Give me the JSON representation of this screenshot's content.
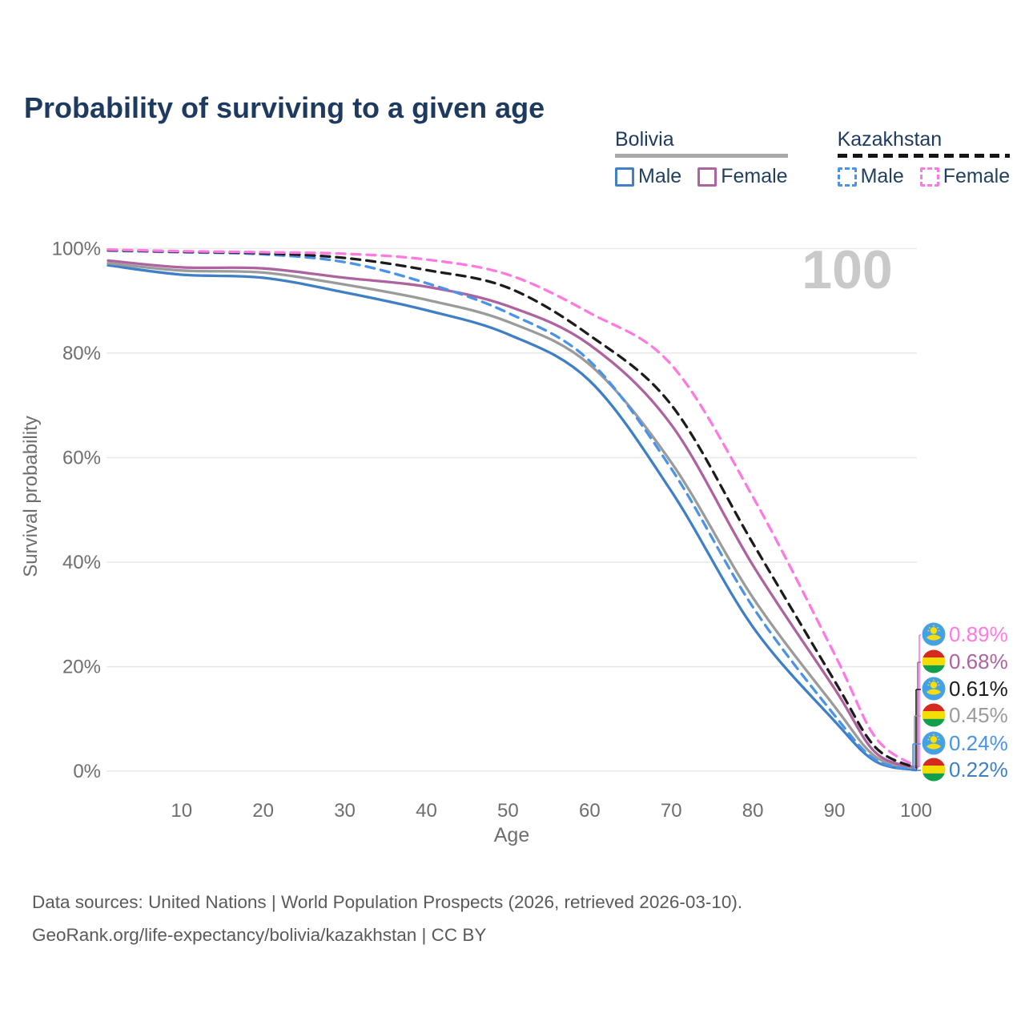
{
  "page": {
    "title": "Probability of surviving to a given age",
    "footer_line1": "Data sources: United Nations | World Population Prospects (2026, retrieved 2026-03-10).",
    "footer_line2": "GeoRank.org/life-expectancy/bolivia/kazakhstan | CC BY"
  },
  "legend": {
    "groups": [
      {
        "label": "Bolivia",
        "underline": "solid",
        "items": [
          {
            "label": "Male",
            "color": "#4180c4",
            "box": "solid"
          },
          {
            "label": "Female",
            "color": "#ad639f",
            "box": "solid"
          }
        ]
      },
      {
        "label": "Kazakhstan",
        "underline": "dashed",
        "items": [
          {
            "label": "Male",
            "color": "#4a93e8",
            "box": "dashed"
          },
          {
            "label": "Female",
            "color": "#ff7ae0",
            "box": "dashed"
          }
        ]
      }
    ]
  },
  "chart_data": {
    "type": "line",
    "title": "Probability of surviving to a given age",
    "xlabel": "Age",
    "ylabel": "Survival probability",
    "xlim": [
      1,
      100
    ],
    "ylim": [
      0,
      100
    ],
    "x_ticks": [
      10,
      20,
      30,
      40,
      50,
      60,
      70,
      80,
      90,
      100
    ],
    "y_ticks": [
      "0%",
      "20%",
      "40%",
      "60%",
      "80%",
      "100%"
    ],
    "grid": "horizontal",
    "legend_position": "top-right",
    "highlight_age_label": "100",
    "ages": [
      1,
      10,
      20,
      30,
      40,
      50,
      60,
      70,
      80,
      90,
      95,
      100
    ],
    "series": [
      {
        "name": "Kazakhstan Female",
        "country": "Kazakhstan",
        "sex": "Female",
        "color": "#ff7ae0",
        "dash": "dashed",
        "flag": "kazakhstan",
        "end_label": "0.89%",
        "values": [
          99.8,
          99.5,
          99.3,
          99.0,
          97.9,
          95.0,
          87.7,
          77.8,
          52.5,
          22.4,
          6.5,
          0.89
        ]
      },
      {
        "name": "Bolivia Female",
        "country": "Bolivia",
        "sex": "Female",
        "color": "#ad639f",
        "dash": "solid",
        "flag": "bolivia",
        "end_label": "0.68%",
        "values": [
          97.7,
          96.4,
          96.2,
          94.4,
          92.7,
          89.0,
          81.6,
          66.3,
          39.4,
          15.8,
          3.6,
          0.68
        ]
      },
      {
        "name": "Kazakhstan Both sexes",
        "country": "Kazakhstan",
        "sex": "Both",
        "color": "#1c1c1c",
        "dash": "dashed",
        "flag": "kazakhstan",
        "end_label": "0.61%",
        "values": [
          99.7,
          99.4,
          99.1,
          98.2,
          95.9,
          92.5,
          83.4,
          70.1,
          43.6,
          17.3,
          4.6,
          0.61
        ]
      },
      {
        "name": "Bolivia Both sexes",
        "country": "Bolivia",
        "sex": "Both",
        "color": "#9b9b9b",
        "dash": "solid",
        "flag": "bolivia",
        "end_label": "0.45%",
        "values": [
          97.2,
          95.8,
          95.4,
          93.1,
          90.2,
          86.0,
          77.8,
          59.1,
          33.2,
          12.4,
          2.8,
          0.45
        ]
      },
      {
        "name": "Kazakhstan Male",
        "country": "Kazakhstan",
        "sex": "Male",
        "color": "#4a93e8",
        "dash": "dashed",
        "flag": "kazakhstan",
        "end_label": "0.24%",
        "values": [
          99.6,
          99.3,
          98.9,
          97.4,
          93.4,
          87.7,
          78.5,
          57.9,
          31.4,
          10.7,
          2.2,
          0.24
        ]
      },
      {
        "name": "Bolivia Male",
        "country": "Bolivia",
        "sex": "Male",
        "color": "#3f7fc6",
        "dash": "solid",
        "flag": "bolivia",
        "end_label": "0.22%",
        "values": [
          96.8,
          95.0,
          94.4,
          91.6,
          88.2,
          83.6,
          74.7,
          53.6,
          27.6,
          9.6,
          1.9,
          0.22
        ]
      }
    ]
  }
}
